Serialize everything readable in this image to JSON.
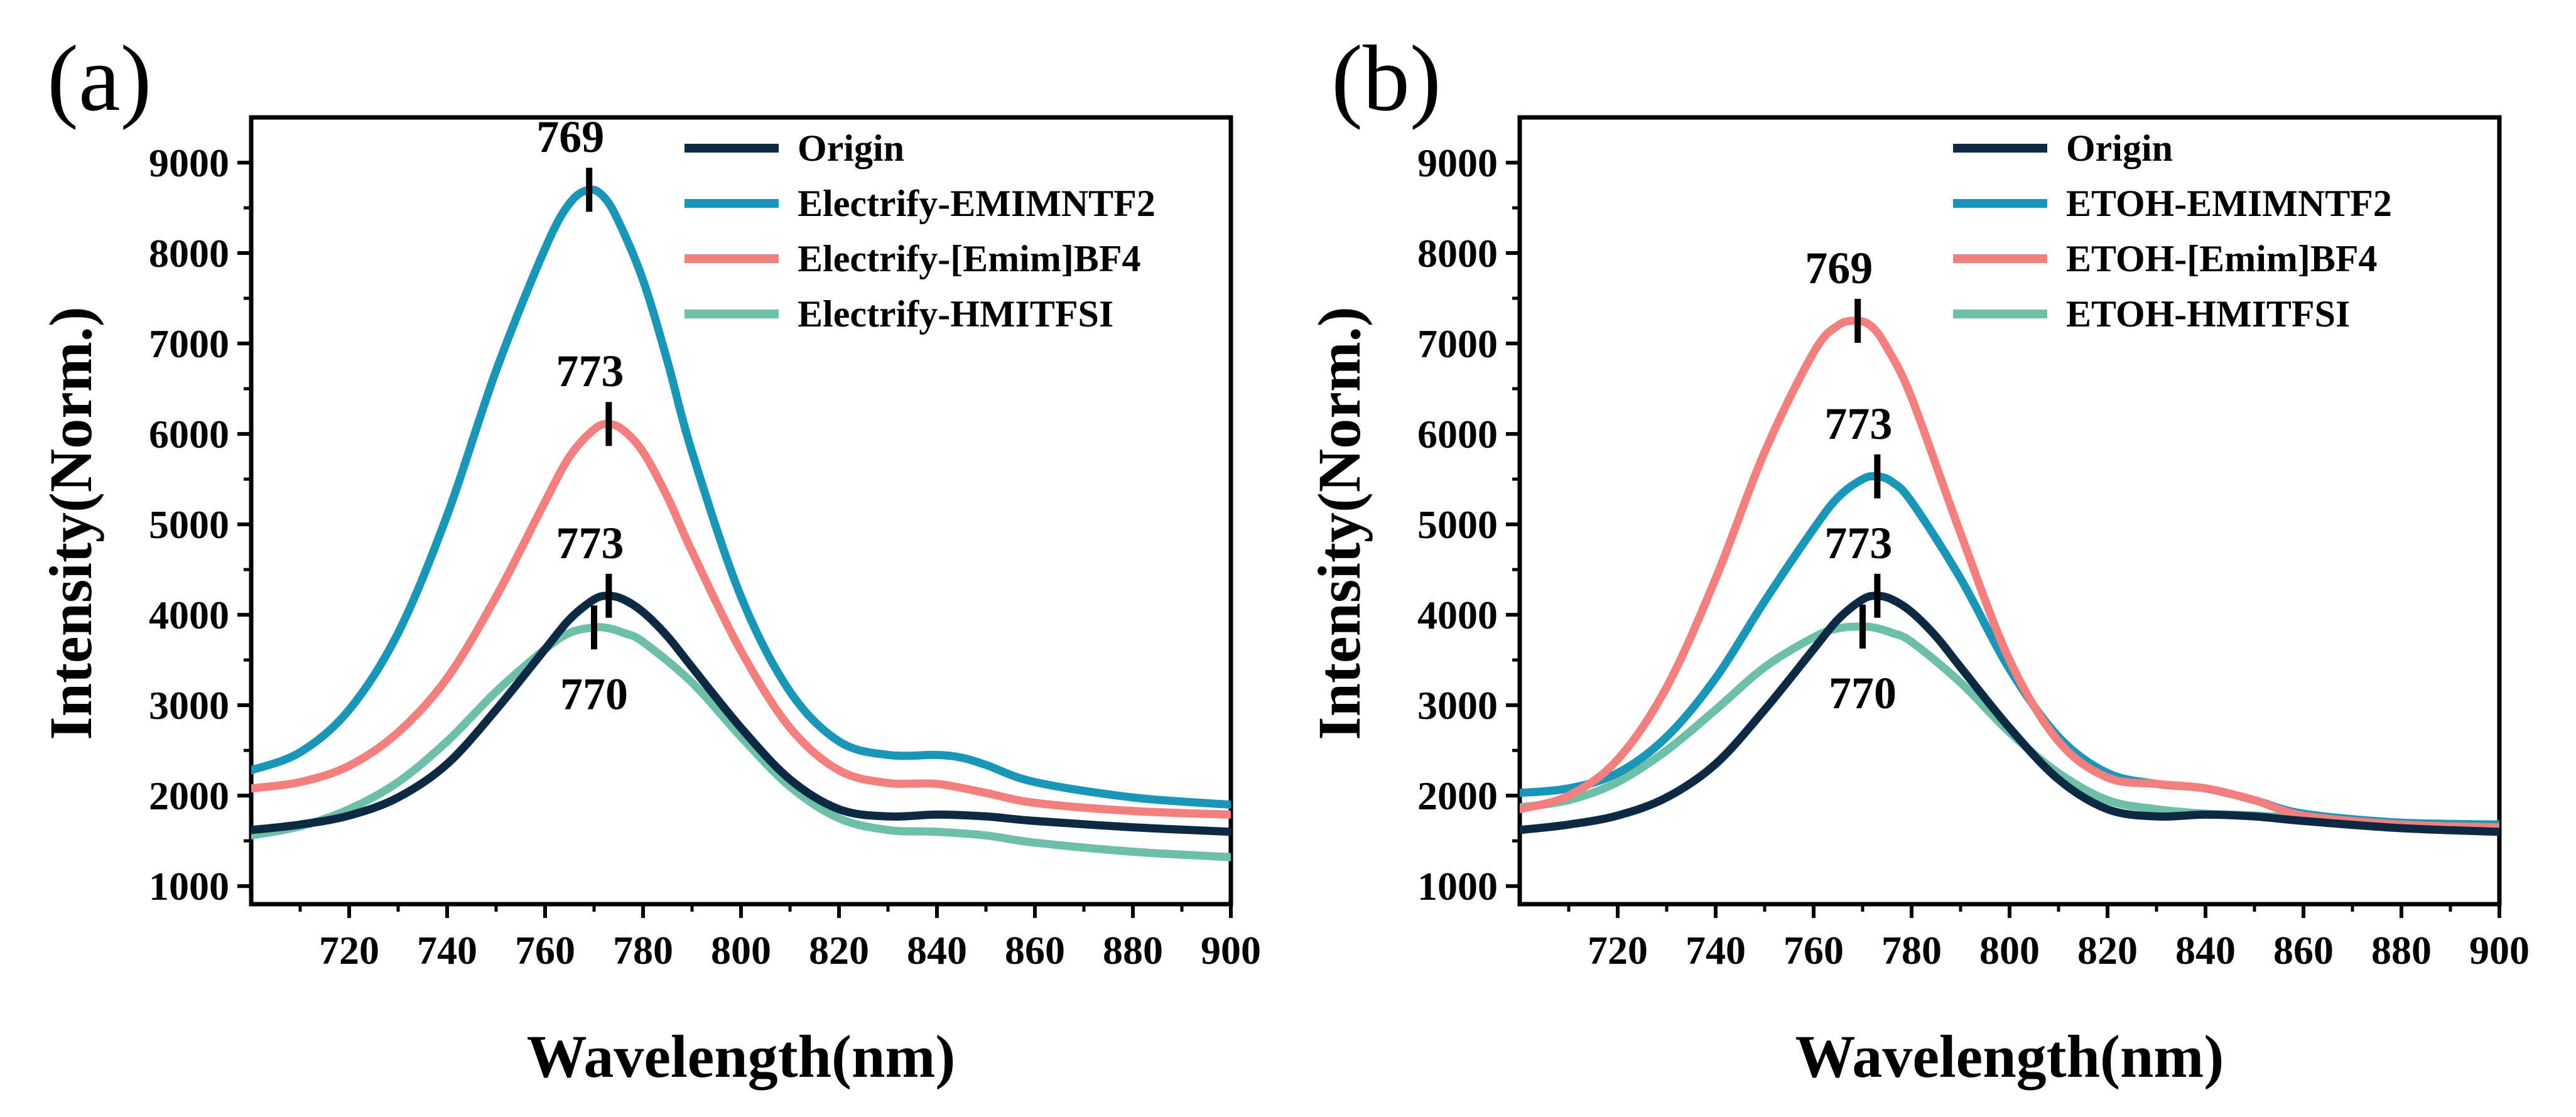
{
  "chart_data": [
    {
      "type": "line",
      "panel_label": "(a)",
      "xlabel": "Wavelength(nm)",
      "ylabel": "Intensity(Norm.)",
      "xlim": [
        700,
        900
      ],
      "ylim": [
        800,
        9500
      ],
      "xticks": [
        720,
        740,
        760,
        780,
        800,
        820,
        840,
        860,
        880,
        900
      ],
      "yticks": [
        1000,
        2000,
        3000,
        4000,
        5000,
        6000,
        7000,
        8000,
        9000
      ],
      "legend_position": "top-right",
      "series": [
        {
          "name": "Origin",
          "color": "#0d2a45",
          "x": [
            700,
            710,
            720,
            730,
            740,
            750,
            760,
            765,
            770,
            773,
            776,
            780,
            785,
            790,
            800,
            810,
            820,
            830,
            840,
            850,
            860,
            880,
            900
          ],
          "y": [
            1620,
            1680,
            1780,
            1980,
            2350,
            2950,
            3620,
            3950,
            4170,
            4210,
            4170,
            4030,
            3760,
            3420,
            2750,
            2180,
            1850,
            1770,
            1790,
            1770,
            1720,
            1650,
            1600
          ]
        },
        {
          "name": "Electrify-EMIMNTF2",
          "color": "#1996b8",
          "x": [
            700,
            710,
            720,
            730,
            740,
            750,
            760,
            765,
            769,
            772,
            775,
            780,
            785,
            790,
            800,
            810,
            820,
            830,
            840,
            845,
            850,
            860,
            880,
            900
          ],
          "y": [
            2280,
            2480,
            2950,
            3800,
            5100,
            6700,
            8050,
            8550,
            8700,
            8620,
            8350,
            7700,
            6800,
            5800,
            4200,
            3150,
            2600,
            2450,
            2450,
            2420,
            2340,
            2150,
            1980,
            1900
          ]
        },
        {
          "name": "Electrify-[Emim]BF4",
          "color": "#f47f7f",
          "x": [
            700,
            710,
            720,
            730,
            740,
            750,
            760,
            765,
            770,
            773,
            776,
            780,
            785,
            790,
            800,
            810,
            820,
            830,
            840,
            850,
            860,
            880,
            900
          ],
          "y": [
            2080,
            2150,
            2330,
            2700,
            3300,
            4200,
            5250,
            5750,
            6050,
            6110,
            6040,
            5800,
            5300,
            4700,
            3600,
            2750,
            2280,
            2140,
            2130,
            2030,
            1920,
            1830,
            1790
          ]
        },
        {
          "name": "Electrify-HMITFSI",
          "color": "#6dbfa8",
          "x": [
            700,
            710,
            720,
            730,
            740,
            750,
            760,
            765,
            770,
            773,
            776,
            780,
            790,
            800,
            810,
            820,
            830,
            840,
            850,
            860,
            880,
            900
          ],
          "y": [
            1560,
            1660,
            1850,
            2150,
            2600,
            3150,
            3620,
            3800,
            3860,
            3850,
            3800,
            3700,
            3250,
            2650,
            2100,
            1750,
            1620,
            1600,
            1560,
            1480,
            1380,
            1320
          ]
        }
      ],
      "annotations": [
        {
          "text": "769",
          "x": 769,
          "y": 8700,
          "position": "above"
        },
        {
          "text": "773",
          "x": 773,
          "y": 6110,
          "position": "above"
        },
        {
          "text": "773",
          "x": 773,
          "y": 4210,
          "position": "above"
        },
        {
          "text": "770",
          "x": 770,
          "y": 3860,
          "position": "below"
        }
      ]
    },
    {
      "type": "line",
      "panel_label": "(b)",
      "xlabel": "Wavelength(nm)",
      "ylabel": "Intensity(Norm.)",
      "xlim": [
        700,
        900
      ],
      "ylim": [
        800,
        9500
      ],
      "xticks": [
        720,
        740,
        760,
        780,
        800,
        820,
        840,
        860,
        880,
        900
      ],
      "yticks": [
        1000,
        2000,
        3000,
        4000,
        5000,
        6000,
        7000,
        8000,
        9000
      ],
      "legend_position": "top-right",
      "series": [
        {
          "name": "Origin",
          "color": "#0d2a45",
          "x": [
            700,
            710,
            720,
            730,
            740,
            750,
            760,
            765,
            770,
            773,
            776,
            780,
            785,
            790,
            800,
            810,
            820,
            830,
            840,
            850,
            860,
            880,
            900
          ],
          "y": [
            1620,
            1680,
            1780,
            1980,
            2350,
            2950,
            3620,
            3950,
            4170,
            4210,
            4170,
            4030,
            3760,
            3420,
            2750,
            2180,
            1850,
            1770,
            1790,
            1770,
            1720,
            1640,
            1600
          ]
        },
        {
          "name": "ETOH-EMIMNTF2",
          "color": "#1996b8",
          "x": [
            700,
            710,
            720,
            730,
            740,
            750,
            760,
            765,
            770,
            773,
            776,
            780,
            790,
            800,
            810,
            820,
            830,
            840,
            850,
            860,
            880,
            900
          ],
          "y": [
            2030,
            2080,
            2250,
            2650,
            3300,
            4150,
            4950,
            5300,
            5500,
            5530,
            5470,
            5250,
            4400,
            3400,
            2650,
            2250,
            2130,
            2080,
            1950,
            1800,
            1700,
            1680
          ]
        },
        {
          "name": "ETOH-[Emim]BF4",
          "color": "#f47f7f",
          "x": [
            700,
            710,
            720,
            730,
            740,
            750,
            760,
            765,
            769,
            772,
            775,
            780,
            790,
            800,
            810,
            820,
            830,
            840,
            850,
            860,
            880,
            900
          ],
          "y": [
            1850,
            2000,
            2400,
            3200,
            4400,
            5800,
            6900,
            7200,
            7250,
            7180,
            6950,
            6400,
            4900,
            3500,
            2600,
            2200,
            2130,
            2080,
            1950,
            1780,
            1680,
            1650
          ]
        },
        {
          "name": "ETOH-HMITFSI",
          "color": "#6dbfa8",
          "x": [
            700,
            710,
            720,
            730,
            740,
            750,
            760,
            765,
            770,
            773,
            776,
            780,
            790,
            800,
            810,
            820,
            830,
            840,
            850,
            860,
            880,
            900
          ],
          "y": [
            1870,
            1950,
            2150,
            2500,
            2950,
            3420,
            3750,
            3850,
            3870,
            3850,
            3800,
            3700,
            3250,
            2700,
            2250,
            1950,
            1850,
            1800,
            1780,
            1750,
            1700,
            1680
          ]
        }
      ],
      "annotations": [
        {
          "text": "769",
          "x": 769,
          "y": 7250,
          "position": "above"
        },
        {
          "text": "773",
          "x": 773,
          "y": 5530,
          "position": "above"
        },
        {
          "text": "773",
          "x": 773,
          "y": 4210,
          "position": "above"
        },
        {
          "text": "770",
          "x": 770,
          "y": 3870,
          "position": "below"
        }
      ]
    }
  ]
}
